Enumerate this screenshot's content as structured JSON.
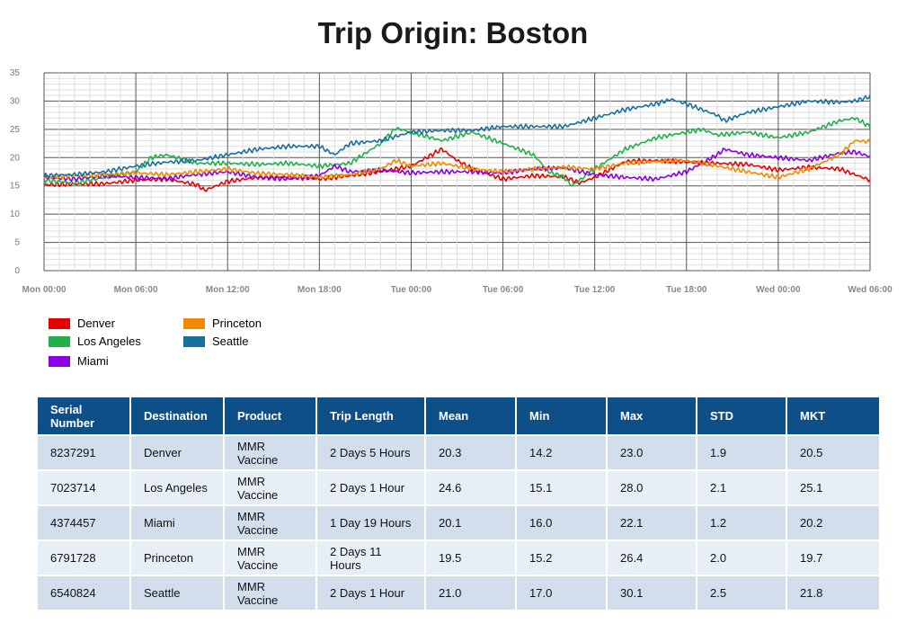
{
  "title": "Trip Origin: Boston",
  "chart_data": {
    "type": "line",
    "title": "Trip Origin: Boston",
    "xlabel": "",
    "ylabel": "",
    "ylim": [
      0,
      35
    ],
    "yticks": [
      0,
      5,
      10,
      15,
      20,
      25,
      30,
      35
    ],
    "x_hours_ticks": [
      0,
      6,
      12,
      18,
      24,
      30,
      36,
      42,
      48,
      54
    ],
    "xlim_hours": [
      0,
      54
    ],
    "xtick_labels": [
      "Mon 00:00",
      "Mon 06:00",
      "Mon 12:00",
      "Mon 18:00",
      "Tue 00:00",
      "Tue 06:00",
      "Tue 12:00",
      "Tue 18:00",
      "Wed 00:00",
      "Wed 06:00"
    ],
    "grid": true,
    "legend_position": "bottom-left",
    "series": [
      {
        "name": "Denver",
        "color": "#e60000",
        "x": [
          0,
          2,
          4,
          6,
          8,
          10,
          10.5,
          12,
          14,
          16,
          18,
          20,
          22,
          24,
          25,
          26,
          27,
          28,
          30,
          32,
          34,
          35,
          36,
          38,
          40,
          42,
          44,
          46,
          48,
          50,
          52,
          54
        ],
        "y": [
          15.2,
          15.3,
          15.4,
          16.0,
          16.2,
          15.2,
          14.2,
          15.8,
          16.5,
          16.6,
          16.2,
          16.8,
          17.5,
          18.5,
          20.0,
          21.5,
          19.5,
          18.0,
          16.2,
          16.8,
          16.6,
          15.5,
          16.5,
          19.3,
          19.5,
          19.2,
          19.0,
          18.8,
          17.8,
          18.3,
          18.0,
          16.0
        ]
      },
      {
        "name": "Los Angeles",
        "color": "#22b04b",
        "x": [
          0,
          2,
          4,
          6,
          7,
          8,
          10,
          12,
          14,
          16,
          18,
          20,
          22,
          23,
          24,
          26,
          28,
          30,
          32,
          33,
          34,
          34.5,
          36,
          38,
          40,
          42,
          43,
          44,
          46,
          48,
          50,
          52,
          53,
          54
        ],
        "y": [
          16.0,
          15.5,
          16.5,
          17.5,
          20.0,
          20.5,
          19.0,
          19.0,
          18.8,
          19.0,
          18.5,
          19.0,
          22.5,
          25.2,
          24.5,
          23.0,
          24.5,
          22.5,
          20.5,
          17.5,
          16.5,
          15.0,
          18.0,
          21.5,
          23.5,
          24.5,
          25.0,
          24.0,
          24.5,
          23.5,
          24.5,
          26.5,
          27.0,
          25.5
        ]
      },
      {
        "name": "Miami",
        "color": "#8a00e0",
        "x": [
          0,
          2,
          4,
          6,
          8,
          10,
          12,
          14,
          16,
          18,
          19,
          20,
          22,
          24,
          26,
          28,
          30,
          32,
          34,
          36,
          38,
          40,
          42,
          44,
          44.5,
          46,
          48,
          50,
          52,
          53,
          54
        ],
        "y": [
          16.5,
          16.2,
          16.8,
          16.5,
          16.3,
          17.0,
          17.5,
          16.5,
          16.2,
          16.8,
          18.5,
          17.5,
          17.8,
          17.3,
          17.5,
          17.5,
          17.3,
          18.0,
          18.2,
          17.0,
          16.5,
          16.2,
          17.5,
          20.5,
          21.5,
          20.5,
          20.0,
          19.5,
          20.8,
          21.0,
          20.2
        ]
      },
      {
        "name": "Princeton",
        "color": "#f08a00",
        "x": [
          0,
          2,
          4,
          6,
          8,
          10,
          12,
          14,
          16,
          18,
          20,
          22,
          23,
          24,
          26,
          28,
          30,
          32,
          34,
          36,
          38,
          40,
          42,
          44,
          46,
          47,
          48,
          50,
          52,
          53,
          54
        ],
        "y": [
          16.5,
          16.8,
          17.0,
          17.3,
          17.0,
          17.5,
          18.0,
          17.2,
          17.0,
          16.5,
          17.0,
          18.0,
          19.5,
          18.5,
          19.0,
          18.0,
          17.5,
          18.0,
          18.3,
          18.0,
          19.0,
          19.3,
          19.5,
          18.5,
          17.5,
          17.0,
          16.5,
          18.0,
          20.5,
          23.0,
          22.8
        ]
      },
      {
        "name": "Seattle",
        "color": "#18709e",
        "x": [
          0,
          2,
          4,
          6,
          8,
          10,
          12,
          14,
          16,
          18,
          19,
          20,
          22,
          24,
          26,
          28,
          30,
          32,
          34,
          36,
          38,
          40,
          41,
          42,
          44,
          44.5,
          46,
          48,
          50,
          52,
          53,
          54
        ],
        "y": [
          16.8,
          17.0,
          17.5,
          18.5,
          19.2,
          19.5,
          20.5,
          21.5,
          22.0,
          22.0,
          20.5,
          22.5,
          23.0,
          24.5,
          24.8,
          24.8,
          25.5,
          25.5,
          25.5,
          27.0,
          28.5,
          29.5,
          30.3,
          29.5,
          27.5,
          26.5,
          28.0,
          29.0,
          30.0,
          29.8,
          30.0,
          30.8
        ]
      }
    ]
  },
  "legend": [
    {
      "name": "Denver",
      "color": "#e60000"
    },
    {
      "name": "Los Angeles",
      "color": "#22b04b"
    },
    {
      "name": "Miami",
      "color": "#8a00e0"
    },
    {
      "name": "Princeton",
      "color": "#f08a00"
    },
    {
      "name": "Seattle",
      "color": "#18709e"
    }
  ],
  "table": {
    "headers": [
      "Serial Number",
      "Destination",
      "Product",
      "Trip Length",
      "Mean",
      "Min",
      "Max",
      "STD",
      "MKT"
    ],
    "rows": [
      [
        "8237291",
        "Denver",
        "MMR Vaccine",
        "2 Days 5 Hours",
        "20.3",
        "14.2",
        "23.0",
        "1.9",
        "20.5"
      ],
      [
        "7023714",
        "Los Angeles",
        "MMR Vaccine",
        "2 Days 1 Hour",
        "24.6",
        "15.1",
        "28.0",
        "2.1",
        "25.1"
      ],
      [
        "4374457",
        "Miami",
        "MMR Vaccine",
        "1 Day 19 Hours",
        "20.1",
        "16.0",
        "22.1",
        "1.2",
        "20.2"
      ],
      [
        "6791728",
        "Princeton",
        "MMR Vaccine",
        "2 Days 11 Hours",
        "19.5",
        "15.2",
        "26.4",
        "2.0",
        "19.7"
      ],
      [
        "6540824",
        "Seattle",
        "MMR Vaccine",
        "2 Days 1 Hour",
        "21.0",
        "17.0",
        "30.1",
        "2.5",
        "21.8"
      ]
    ]
  }
}
